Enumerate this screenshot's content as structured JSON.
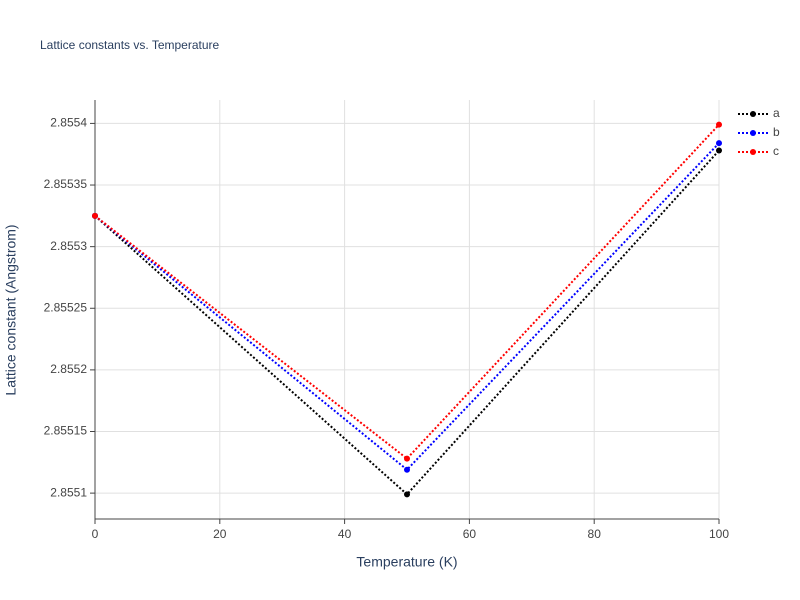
{
  "chart_data": {
    "type": "line",
    "title": "Lattice constants vs. Temperature",
    "x_label": "Temperature (K)",
    "y_label": "Lattice constant (Angstrom)",
    "x": [
      0,
      50,
      100
    ],
    "series": [
      {
        "name": "a",
        "color": "#000000",
        "values": [
          2.855325,
          2.855099,
          2.855378
        ]
      },
      {
        "name": "b",
        "color": "#0000ff",
        "values": [
          2.855325,
          2.855119,
          2.855384
        ]
      },
      {
        "name": "c",
        "color": "#ff0000",
        "values": [
          2.855325,
          2.855128,
          2.855399
        ]
      }
    ],
    "xlim": [
      0,
      100
    ],
    "xticks": [
      0,
      20,
      40,
      60,
      80,
      100
    ],
    "ylim": [
      2.855079,
      2.855419
    ],
    "yticks": [
      2.8551,
      2.85515,
      2.8552,
      2.85525,
      2.8553,
      2.85535,
      2.8554
    ],
    "grid": true,
    "legend": "top-right"
  }
}
